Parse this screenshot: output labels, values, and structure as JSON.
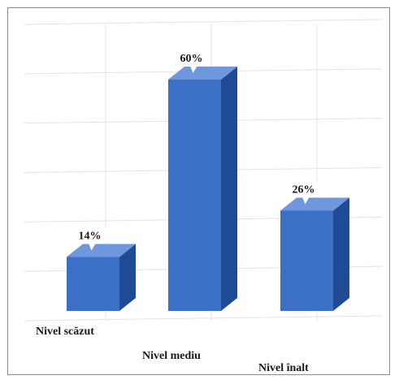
{
  "chart_data": {
    "type": "bar",
    "title": "",
    "xlabel": "",
    "ylabel": "",
    "categories": [
      "Nivel scăzut",
      "Nivel mediu",
      "Nivel înalt"
    ],
    "values": [
      14,
      60,
      26
    ],
    "value_labels": [
      "14%",
      "60%",
      "26%"
    ],
    "unit": "%",
    "ylim": [
      0,
      60
    ],
    "grid": true,
    "style": "3d-columns",
    "colors": {
      "front": "#3c6fc6",
      "side": "#1f4a94",
      "top": "#6e97dd",
      "grid": "#e3e3e3"
    }
  }
}
